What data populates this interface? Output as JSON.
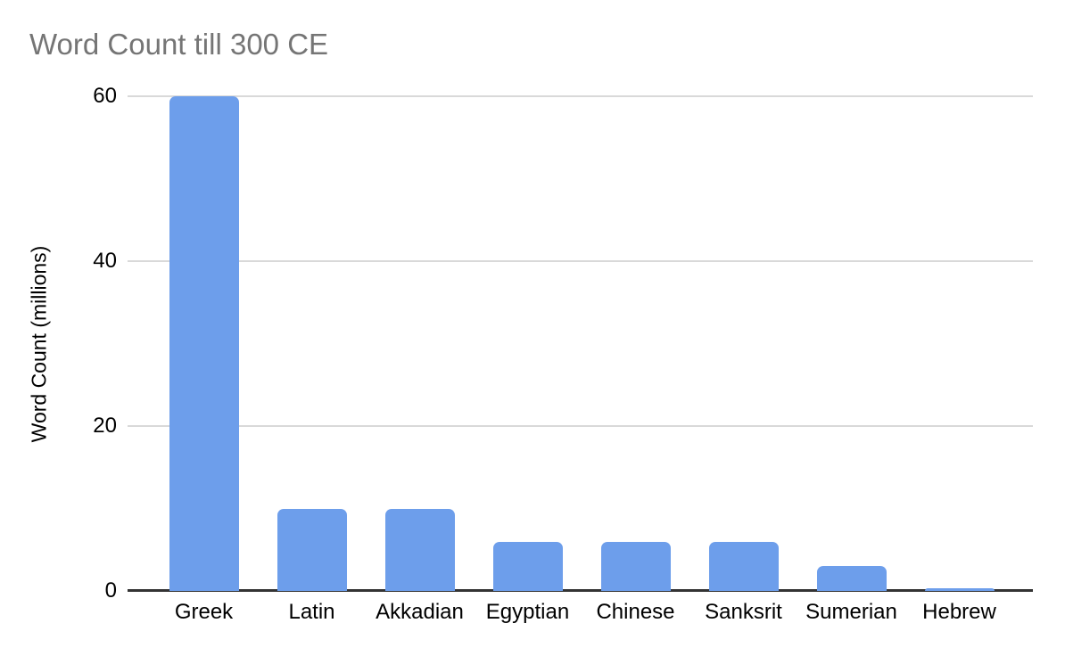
{
  "chart_data": {
    "type": "bar",
    "title": "Word Count till 300 CE",
    "categories": [
      "Greek",
      "Latin",
      "Akkadian",
      "Egyptian",
      "Chinese",
      "Sanksrit",
      "Sumerian",
      "Hebrew"
    ],
    "values": [
      60,
      10,
      10,
      6,
      6,
      6,
      3,
      0.3
    ],
    "xlabel": "",
    "ylabel": "Word Count (millions)",
    "ylim": [
      0,
      60
    ],
    "yticks": [
      0,
      20,
      40,
      60
    ],
    "grid": true,
    "legend_position": "none",
    "colors": {
      "bar": "#6d9eeb",
      "title_text": "#757575",
      "axis_text": "#000000",
      "gridline": "#d9d9d9",
      "baseline": "#333333",
      "background": "#ffffff"
    }
  }
}
